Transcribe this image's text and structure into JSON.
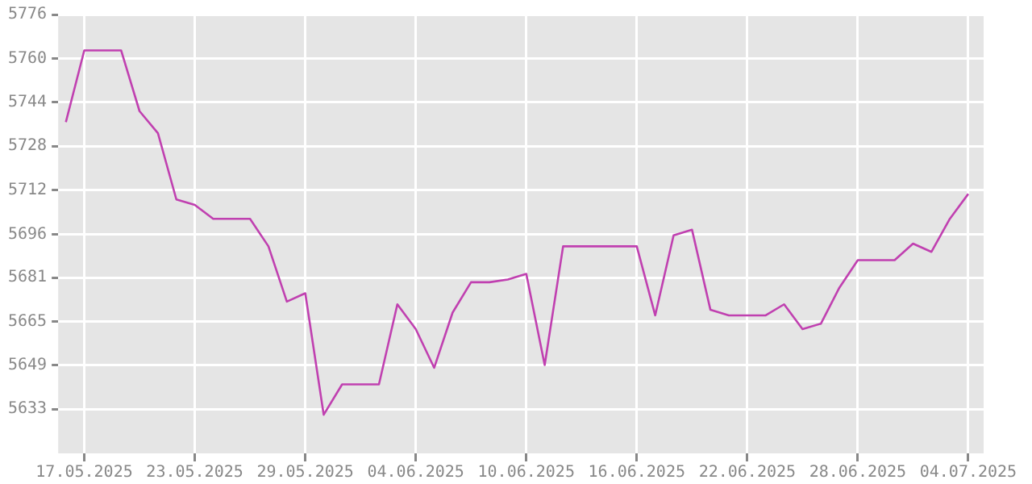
{
  "chart_data": {
    "type": "line",
    "x": [
      "2025-05-16",
      "2025-05-17",
      "2025-05-18",
      "2025-05-19",
      "2025-05-20",
      "2025-05-21",
      "2025-05-22",
      "2025-05-23",
      "2025-05-24",
      "2025-05-25",
      "2025-05-26",
      "2025-05-27",
      "2025-05-28",
      "2025-05-29",
      "2025-05-30",
      "2025-05-31",
      "2025-06-01",
      "2025-06-02",
      "2025-06-03",
      "2025-06-04",
      "2025-06-05",
      "2025-06-06",
      "2025-06-07",
      "2025-06-08",
      "2025-06-09",
      "2025-06-10",
      "2025-06-11",
      "2025-06-12",
      "2025-06-13",
      "2025-06-14",
      "2025-06-15",
      "2025-06-16",
      "2025-06-17",
      "2025-06-18",
      "2025-06-19",
      "2025-06-20",
      "2025-06-21",
      "2025-06-22",
      "2025-06-23",
      "2025-06-24",
      "2025-06-25",
      "2025-06-26",
      "2025-06-27",
      "2025-06-28",
      "2025-06-29",
      "2025-06-30",
      "2025-07-01",
      "2025-07-02",
      "2025-07-03",
      "2025-07-04"
    ],
    "series": [
      {
        "color": "#c040b0",
        "values": [
          5737,
          5763,
          5763,
          5763,
          5741,
          5733,
          5709,
          5707,
          5702,
          5702,
          5702,
          5692,
          5672,
          5675,
          5631,
          5642,
          5642,
          5642,
          5671,
          5662,
          5648,
          5668,
          5679,
          5679,
          5680,
          5682,
          5649,
          5692,
          5692,
          5692,
          5692,
          5692,
          5667,
          5696,
          5698,
          5669,
          5667,
          5667,
          5667,
          5671,
          5662,
          5664,
          5677,
          5687,
          5687,
          5687,
          5693,
          5690,
          5702,
          5711
        ]
      }
    ],
    "xlim": [
      "2025-05-15T14:00",
      "2025-07-04T20:00"
    ],
    "xticks": [
      {
        "value": "2025-05-17",
        "label": "17.05.2025"
      },
      {
        "value": "2025-05-23",
        "label": "23.05.2025"
      },
      {
        "value": "2025-05-29",
        "label": "29.05.2025"
      },
      {
        "value": "2025-06-04",
        "label": "04.06.2025"
      },
      {
        "value": "2025-06-10",
        "label": "10.06.2025"
      },
      {
        "value": "2025-06-16",
        "label": "16.06.2025"
      },
      {
        "value": "2025-06-22",
        "label": "22.06.2025"
      },
      {
        "value": "2025-06-28",
        "label": "28.06.2025"
      },
      {
        "value": "2025-07-04",
        "label": "04.07.2025"
      }
    ],
    "ylim": [
      5617,
      5776
    ],
    "yticks": [
      5633,
      {
        "value": 5648.9,
        "label": "5649"
      },
      {
        "value": 5664.8,
        "label": "5665"
      },
      {
        "value": 5680.7,
        "label": "5681"
      },
      {
        "value": 5696.4,
        "label": "5696"
      },
      {
        "value": 5712.4,
        "label": "5712"
      },
      {
        "value": 5728.3,
        "label": "5728"
      },
      {
        "value": 5744.2,
        "label": "5744"
      },
      {
        "value": 5760.1,
        "label": "5760"
      },
      5776
    ],
    "grid": true,
    "legend": false,
    "marker": "none",
    "line_style": "solid"
  }
}
